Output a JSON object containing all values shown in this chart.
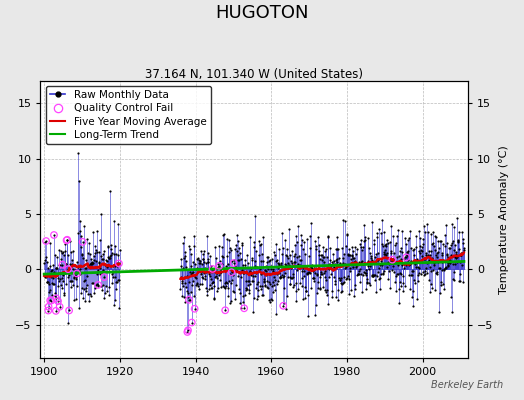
{
  "title": "HUGOTON",
  "subtitle": "37.164 N, 101.340 W (United States)",
  "ylabel": "Temperature Anomaly (°C)",
  "watermark": "Berkeley Earth",
  "xlim": [
    1899,
    2012
  ],
  "ylim": [
    -8,
    17
  ],
  "yticks": [
    -5,
    0,
    5,
    10,
    15
  ],
  "xticks": [
    1900,
    1920,
    1940,
    1960,
    1980,
    2000
  ],
  "seed": 42,
  "raw_color": "#3333cc",
  "raw_marker_color": "#000000",
  "qc_fail_color": "#ff44ff",
  "moving_avg_color": "#dd0000",
  "trend_color": "#00aa00",
  "background_color": "#e8e8e8",
  "plot_bg_color": "#ffffff",
  "grid_color": "#bbbbbb",
  "title_fontsize": 13,
  "subtitle_fontsize": 8.5,
  "ylabel_fontsize": 8,
  "tick_fontsize": 8,
  "legend_fontsize": 7.5
}
